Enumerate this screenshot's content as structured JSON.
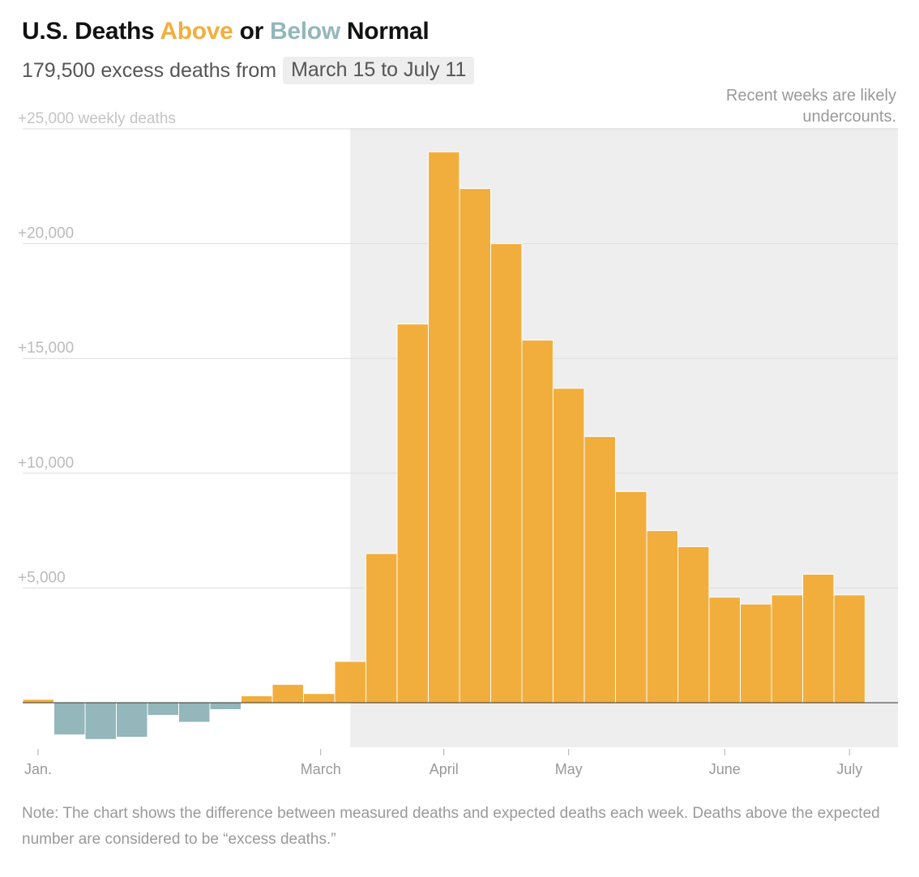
{
  "title": {
    "prefix": "U.S. Deaths ",
    "above": "Above",
    "middle": " or ",
    "below": "Below",
    "suffix": " Normal"
  },
  "subtitle": {
    "text": "179,500 excess deaths from",
    "range": "March 15 to July 11"
  },
  "annotation": {
    "line1": "Recent weeks are likely",
    "line2": "undercounts."
  },
  "note": "Note: The chart shows the difference between measured deaths and expected deaths each week. Deaths above the expected number are considered to be “excess deaths.”",
  "colors": {
    "above": "#f2ae3d",
    "below": "#93b7bb",
    "highlight_band": "#eeeeee",
    "gridline": "#dddddd",
    "axis_text": "#999999"
  },
  "chart_data": {
    "type": "bar",
    "ylabel": "weekly deaths",
    "ylim": [
      -2500,
      25000
    ],
    "yticks": [
      {
        "value": 25000,
        "label": "+25,000 weekly deaths"
      },
      {
        "value": 20000,
        "label": "+20,000"
      },
      {
        "value": 15000,
        "label": "+15,000"
      },
      {
        "value": 10000,
        "label": "+10,000"
      },
      {
        "value": 5000,
        "label": "+5,000"
      }
    ],
    "xticks": [
      {
        "week": 0,
        "label": "Jan."
      },
      {
        "week": 9,
        "label": "March"
      },
      {
        "week": 13,
        "label": "April"
      },
      {
        "week": 17,
        "label": "May"
      },
      {
        "week": 22,
        "label": "June"
      },
      {
        "week": 26,
        "label": "July"
      }
    ],
    "highlight_start_week": 10.5,
    "values": [
      150,
      -1400,
      -1600,
      -1500,
      -550,
      -850,
      -300,
      300,
      800,
      400,
      1800,
      6500,
      16500,
      24000,
      22400,
      20000,
      15800,
      13700,
      11600,
      9200,
      7500,
      6800,
      4600,
      4300,
      4700,
      5600,
      4700
    ],
    "grid": true
  }
}
